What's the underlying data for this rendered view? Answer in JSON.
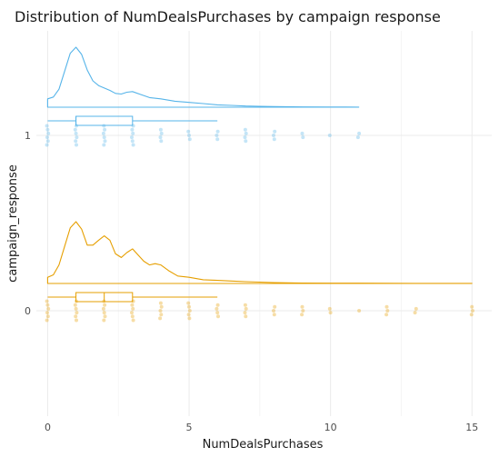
{
  "chart_data": {
    "type": "raincloud",
    "title": "Distribution of NumDealsPurchases by campaign response",
    "xlabel": "NumDealsPurchases",
    "ylabel": "campaign_response",
    "xlim": [
      -0.4,
      15.7
    ],
    "x_ticks": [
      0,
      5,
      10,
      15
    ],
    "categories": [
      "1",
      "0"
    ],
    "grid": true,
    "legend": "none",
    "series": [
      {
        "category": "1",
        "color": "#56B4E9",
        "density": {
          "x": [
            0,
            0.2,
            0.4,
            0.6,
            0.8,
            1.0,
            1.2,
            1.4,
            1.6,
            1.8,
            2.0,
            2.2,
            2.4,
            2.6,
            2.8,
            3.0,
            3.3,
            3.6,
            4.0,
            4.5,
            5.0,
            5.5,
            6.0,
            6.5,
            7.0,
            7.5,
            8.0,
            9.0,
            10.0,
            11.0
          ],
          "y": [
            0.14,
            0.17,
            0.3,
            0.6,
            0.9,
            1.0,
            0.88,
            0.62,
            0.44,
            0.36,
            0.32,
            0.28,
            0.23,
            0.22,
            0.25,
            0.26,
            0.21,
            0.16,
            0.14,
            0.1,
            0.08,
            0.06,
            0.04,
            0.03,
            0.02,
            0.015,
            0.01,
            0.005,
            0.003,
            0.002
          ]
        },
        "box": {
          "whisker_low": 0,
          "q1": 1,
          "median": 1,
          "q3": 3,
          "whisker_high": 6
        },
        "points": [
          {
            "x": 0,
            "n": 6
          },
          {
            "x": 1,
            "n": 6
          },
          {
            "x": 2,
            "n": 6
          },
          {
            "x": 3,
            "n": 6
          },
          {
            "x": 4,
            "n": 4
          },
          {
            "x": 5,
            "n": 3
          },
          {
            "x": 6,
            "n": 3
          },
          {
            "x": 7,
            "n": 4
          },
          {
            "x": 8,
            "n": 3
          },
          {
            "x": 9,
            "n": 2
          },
          {
            "x": 10,
            "n": 1
          },
          {
            "x": 11,
            "n": 2
          }
        ]
      },
      {
        "category": "0",
        "color": "#E69F00",
        "density": {
          "x": [
            0,
            0.2,
            0.4,
            0.6,
            0.8,
            1.0,
            1.2,
            1.4,
            1.6,
            1.8,
            2.0,
            2.2,
            2.4,
            2.6,
            2.8,
            3.0,
            3.2,
            3.4,
            3.6,
            3.8,
            4.0,
            4.3,
            4.6,
            5.0,
            5.5,
            6.0,
            6.5,
            7.0,
            8.0,
            9.0,
            10.0,
            11.0,
            12.0,
            13.0,
            15.0
          ],
          "y": [
            0.1,
            0.14,
            0.3,
            0.6,
            0.9,
            1.0,
            0.88,
            0.62,
            0.62,
            0.7,
            0.77,
            0.7,
            0.48,
            0.42,
            0.5,
            0.56,
            0.46,
            0.36,
            0.3,
            0.32,
            0.3,
            0.2,
            0.12,
            0.1,
            0.06,
            0.05,
            0.04,
            0.03,
            0.015,
            0.008,
            0.005,
            0.004,
            0.003,
            0.002,
            0.001
          ]
        },
        "box": {
          "whisker_low": 0,
          "q1": 1,
          "median": 2,
          "q3": 3,
          "whisker_high": 6
        },
        "points": [
          {
            "x": 0,
            "n": 6
          },
          {
            "x": 1,
            "n": 6
          },
          {
            "x": 2,
            "n": 6
          },
          {
            "x": 3,
            "n": 6
          },
          {
            "x": 4,
            "n": 5
          },
          {
            "x": 5,
            "n": 5
          },
          {
            "x": 6,
            "n": 4
          },
          {
            "x": 7,
            "n": 4
          },
          {
            "x": 8,
            "n": 3
          },
          {
            "x": 9,
            "n": 3
          },
          {
            "x": 10,
            "n": 2
          },
          {
            "x": 11,
            "n": 1
          },
          {
            "x": 12,
            "n": 3
          },
          {
            "x": 13,
            "n": 2
          },
          {
            "x": 15,
            "n": 3
          }
        ]
      }
    ]
  }
}
